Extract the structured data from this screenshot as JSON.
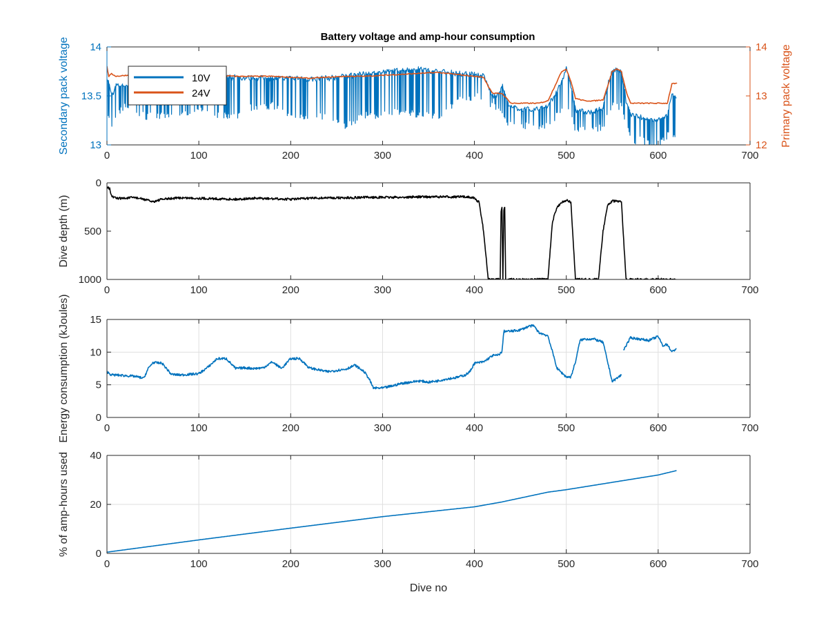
{
  "figure": {
    "title": "Battery voltage and amp-hour consumption"
  },
  "colors": {
    "blue": "#0072BD",
    "orange": "#D95319",
    "black": "#000000",
    "axis": "#262626",
    "grid": "#dfdfdf"
  },
  "chart_data": [
    {
      "type": "line",
      "title": "Battery voltage and amp-hour consumption",
      "xlabel": "",
      "ylabel": "Secondary pack voltage",
      "ylabel_right": "Primary pack voltage",
      "xlim": [
        0,
        700
      ],
      "ylim": [
        13,
        14
      ],
      "ylim_right": [
        12,
        14
      ],
      "xticks": [
        0,
        100,
        200,
        300,
        400,
        500,
        600,
        700
      ],
      "yticks": [
        13,
        13.5,
        14
      ],
      "yticks_right": [
        12,
        13,
        14
      ],
      "grid": false,
      "legend_position": "top-left",
      "series": [
        {
          "name": "10V",
          "axis": "left",
          "color": "#0072BD",
          "style": "noisy",
          "x": [
            0,
            5,
            10,
            20,
            40,
            60,
            80,
            100,
            120,
            140,
            160,
            180,
            200,
            220,
            240,
            260,
            280,
            300,
            320,
            340,
            360,
            380,
            400,
            410,
            415,
            420,
            425,
            430,
            435,
            440,
            460,
            470,
            480,
            490,
            495,
            500,
            505,
            510,
            520,
            530,
            540,
            545,
            550,
            555,
            560,
            565,
            570,
            580,
            590,
            600,
            610,
            615,
            620
          ],
          "y": [
            13.7,
            13.5,
            13.6,
            13.6,
            13.62,
            13.64,
            13.66,
            13.66,
            13.68,
            13.69,
            13.68,
            13.68,
            13.68,
            13.67,
            13.68,
            13.7,
            13.72,
            13.74,
            13.76,
            13.77,
            13.75,
            13.73,
            13.72,
            13.7,
            13.6,
            13.5,
            13.5,
            13.62,
            13.45,
            13.38,
            13.36,
            13.36,
            13.4,
            13.55,
            13.65,
            13.78,
            13.6,
            13.35,
            13.34,
            13.33,
            13.38,
            13.6,
            13.76,
            13.78,
            13.74,
            13.45,
            13.3,
            13.28,
            13.26,
            13.26,
            13.3,
            13.5,
            13.5
          ],
          "dropout_low": [
            13.3,
            13.2,
            13.3,
            13.4,
            13.3,
            13.3,
            13.3,
            13.4,
            13.3,
            13.3,
            13.4,
            13.4,
            13.3,
            13.3,
            13.3,
            13.2,
            13.3,
            13.3,
            13.35,
            13.3,
            13.3,
            13.45,
            13.5,
            13.5,
            13.4,
            13.4,
            13.4,
            13.3,
            13.2,
            13.2,
            13.2,
            13.2,
            13.2,
            13.3,
            13.35,
            13.4,
            13.3,
            13.15,
            13.15,
            13.15,
            13.2,
            13.35,
            13.4,
            13.4,
            13.4,
            13.2,
            13.05,
            13.05,
            13.02,
            13.0,
            13.1,
            13.1,
            13.1
          ]
        },
        {
          "name": "24V",
          "axis": "right",
          "color": "#D95319",
          "style": "smooth",
          "x": [
            0,
            2,
            5,
            10,
            20,
            40,
            60,
            80,
            100,
            120,
            140,
            160,
            180,
            200,
            220,
            240,
            260,
            280,
            300,
            320,
            340,
            360,
            380,
            400,
            410,
            415,
            420,
            425,
            430,
            435,
            440,
            460,
            470,
            480,
            485,
            490,
            495,
            500,
            505,
            510,
            520,
            530,
            540,
            545,
            550,
            555,
            560,
            565,
            570,
            580,
            590,
            600,
            610,
            615,
            620
          ],
          "y": [
            13.6,
            13.4,
            13.45,
            13.4,
            13.42,
            13.42,
            13.42,
            13.42,
            13.42,
            13.42,
            13.4,
            13.4,
            13.4,
            13.38,
            13.36,
            13.38,
            13.4,
            13.4,
            13.42,
            13.44,
            13.46,
            13.48,
            13.44,
            13.4,
            13.38,
            13.2,
            13.05,
            13.05,
            13.05,
            12.95,
            12.85,
            12.85,
            12.85,
            12.9,
            13.1,
            13.3,
            13.5,
            13.55,
            13.3,
            12.95,
            12.9,
            12.9,
            12.92,
            13.2,
            13.5,
            13.55,
            13.5,
            13.1,
            12.85,
            12.85,
            12.85,
            12.85,
            12.85,
            13.25,
            13.25
          ]
        }
      ]
    },
    {
      "type": "line",
      "xlabel": "",
      "ylabel": "Dive depth (m)",
      "xlim": [
        0,
        700
      ],
      "ylim": [
        0,
        1000
      ],
      "yreversed": true,
      "xticks": [
        0,
        100,
        200,
        300,
        400,
        500,
        600,
        700
      ],
      "yticks": [
        0,
        500,
        1000
      ],
      "grid": false,
      "series": [
        {
          "color": "#000000",
          "style": "jitter",
          "x": [
            0,
            3,
            5,
            10,
            20,
            30,
            40,
            50,
            60,
            80,
            100,
            120,
            140,
            160,
            180,
            200,
            220,
            240,
            260,
            280,
            300,
            320,
            340,
            360,
            380,
            395,
            400,
            405,
            410,
            415,
            428,
            429,
            430,
            431,
            432,
            433,
            434,
            480,
            485,
            490,
            495,
            500,
            505,
            510,
            520,
            535,
            540,
            545,
            550,
            555,
            560,
            565,
            580,
            600,
            620
          ],
          "y": [
            40,
            60,
            140,
            160,
            160,
            150,
            170,
            195,
            170,
            155,
            160,
            165,
            170,
            160,
            165,
            170,
            160,
            155,
            155,
            150,
            150,
            150,
            145,
            145,
            145,
            145,
            160,
            200,
            500,
            1000,
            1000,
            300,
            250,
            1000,
            280,
            250,
            1000,
            1000,
            400,
            250,
            200,
            180,
            200,
            1000,
            1000,
            1000,
            500,
            230,
            190,
            190,
            200,
            1000,
            1000,
            1000,
            1000
          ]
        }
      ]
    },
    {
      "type": "line",
      "xlabel": "",
      "ylabel": "Energy consumption (kJoules)",
      "xlim": [
        0,
        700
      ],
      "ylim": [
        0,
        15
      ],
      "xticks": [
        0,
        100,
        200,
        300,
        400,
        500,
        600,
        700
      ],
      "yticks": [
        0,
        5,
        10,
        15
      ],
      "grid": true,
      "series": [
        {
          "color": "#0072BD",
          "style": "jitter",
          "segments": [
            {
              "x": [
                0,
                5,
                10,
                20,
                30,
                40,
                45,
                50,
                60,
                70,
                80,
                90,
                100,
                110,
                120,
                130,
                140,
                150,
                160,
                170,
                180,
                190,
                200,
                210,
                220,
                230,
                240,
                250,
                260,
                270,
                280,
                285,
                290,
                300,
                310,
                320,
                330,
                340,
                350,
                360,
                370,
                380,
                390,
                395,
                400,
                410,
                420,
                425,
                430,
                432,
                440,
                450,
                460,
                465,
                470,
                480,
                485,
                490,
                500,
                505,
                510,
                515,
                520,
                530,
                540,
                545,
                550,
                560
              ],
              "y": [
                7.0,
                6.5,
                6.5,
                6.4,
                6.3,
                6.0,
                7.5,
                8.4,
                8.3,
                6.6,
                6.5,
                6.6,
                6.7,
                7.7,
                9.0,
                9.0,
                7.5,
                7.6,
                7.5,
                7.6,
                8.5,
                7.5,
                9.0,
                9.0,
                7.6,
                7.3,
                7.0,
                7.2,
                7.4,
                8.0,
                7.0,
                6.0,
                4.5,
                4.5,
                4.8,
                5.2,
                5.4,
                5.6,
                5.4,
                5.6,
                5.9,
                6.1,
                6.5,
                7.0,
                8.3,
                8.5,
                9.5,
                9.5,
                10.0,
                13.2,
                13.2,
                13.4,
                14.0,
                14.0,
                13.0,
                12.5,
                10.0,
                7.5,
                6.2,
                6.2,
                8.5,
                11.8,
                12.0,
                12.0,
                11.5,
                8.5,
                5.5,
                6.5
              ]
            },
            {
              "x": [
                562,
                565,
                570,
                580,
                590,
                600,
                605,
                610,
                615,
                620
              ],
              "y": [
                10.3,
                11.0,
                12.2,
                12.0,
                11.8,
                12.4,
                11.0,
                11.2,
                10.0,
                10.6
              ]
            }
          ]
        }
      ]
    },
    {
      "type": "line",
      "xlabel": "Dive no",
      "ylabel": "% of amp-hours used",
      "xlim": [
        0,
        700
      ],
      "ylim": [
        0,
        40
      ],
      "xticks": [
        0,
        100,
        200,
        300,
        400,
        500,
        600,
        700
      ],
      "yticks": [
        0,
        20,
        40
      ],
      "grid": true,
      "series": [
        {
          "color": "#0072BD",
          "style": "smooth",
          "x": [
            0,
            100,
            200,
            300,
            400,
            430,
            480,
            500,
            550,
            600,
            620
          ],
          "y": [
            0.5,
            5.5,
            10.3,
            15.0,
            19.0,
            21.0,
            25.0,
            26.0,
            29.0,
            32.0,
            33.8
          ]
        }
      ]
    }
  ]
}
